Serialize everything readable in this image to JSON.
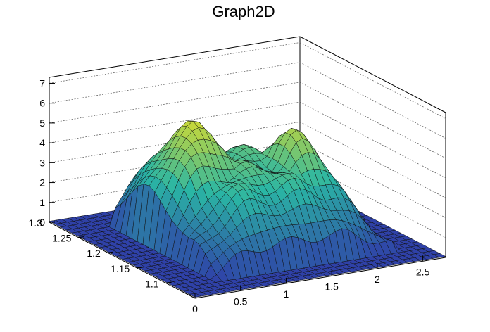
{
  "chart_data": {
    "type": "surface",
    "title": "Graph2D",
    "x_axis": {
      "range": [
        0,
        2.75
      ],
      "ticks": [
        "0",
        "0.5",
        "1",
        "1.5",
        "2",
        "2.5"
      ]
    },
    "y_axis": {
      "range": [
        1.05,
        1.3
      ],
      "ticks": [
        "1.1",
        "1.15",
        "1.2",
        "1.25",
        "1.3"
      ]
    },
    "z_axis": {
      "range": [
        0,
        7.3
      ],
      "ticks": [
        "0",
        "1",
        "2",
        "3",
        "4",
        "5",
        "6",
        "7"
      ]
    },
    "grid": true,
    "colormap": "viridis-like (blue-green-yellow)",
    "surface_description_points": [
      {
        "x": 0.1,
        "y": 1.06,
        "z": 0.4
      },
      {
        "x": 0.3,
        "y": 1.1,
        "z": 0.0
      },
      {
        "x": 0.6,
        "y": 1.15,
        "z": 4.8
      },
      {
        "x": 1.0,
        "y": 1.2,
        "z": 5.8
      },
      {
        "x": 1.5,
        "y": 1.2,
        "z": 5.2
      },
      {
        "x": 2.0,
        "y": 1.18,
        "z": 4.8
      },
      {
        "x": 2.4,
        "y": 1.15,
        "z": 2.0
      },
      {
        "x": 2.7,
        "y": 1.1,
        "z": 0.3
      }
    ]
  },
  "colors": {
    "frame": "#000000",
    "grid": "#555555",
    "low": "#2f3fa8",
    "mid": "#2ab6a4",
    "high": "#f5e11a"
  }
}
